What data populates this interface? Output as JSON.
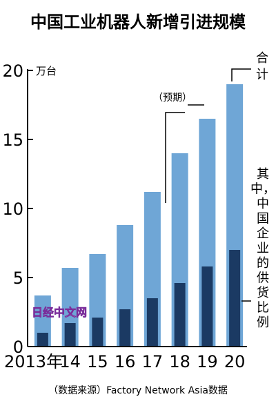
{
  "title": "中国工业机器人新增引进规模",
  "unit": "万台",
  "forecast_label": "（预期）",
  "total_label": [
    "合",
    "计"
  ],
  "share_label": [
    "其",
    "中，",
    "中",
    "国",
    "企",
    "业",
    "的",
    "供",
    "货",
    "比",
    "例"
  ],
  "source": "（数据来源）Factory Network Asia数据",
  "watermark": "日经中文网",
  "colors": {
    "total": "#6FA6D6",
    "domestic": "#1B3A63",
    "axis": "#000000"
  },
  "chart_data": {
    "type": "bar",
    "title": "中国工业机器人新增引进规模",
    "ylabel": "万台",
    "ylim": [
      0,
      20
    ],
    "yticks": [
      0,
      5,
      10,
      15,
      20
    ],
    "categories": [
      "2013年",
      "14",
      "15",
      "16",
      "17",
      "18",
      "19",
      "20"
    ],
    "series": [
      {
        "name": "合计",
        "values": [
          3.7,
          5.7,
          6.7,
          8.8,
          11.2,
          14.0,
          16.5,
          19.0
        ]
      },
      {
        "name": "其中，中国企业的供货比例",
        "values": [
          1.0,
          1.7,
          2.1,
          2.7,
          3.5,
          4.6,
          5.8,
          7.0
        ]
      }
    ],
    "annotations": [
      "（预期）"
    ]
  }
}
